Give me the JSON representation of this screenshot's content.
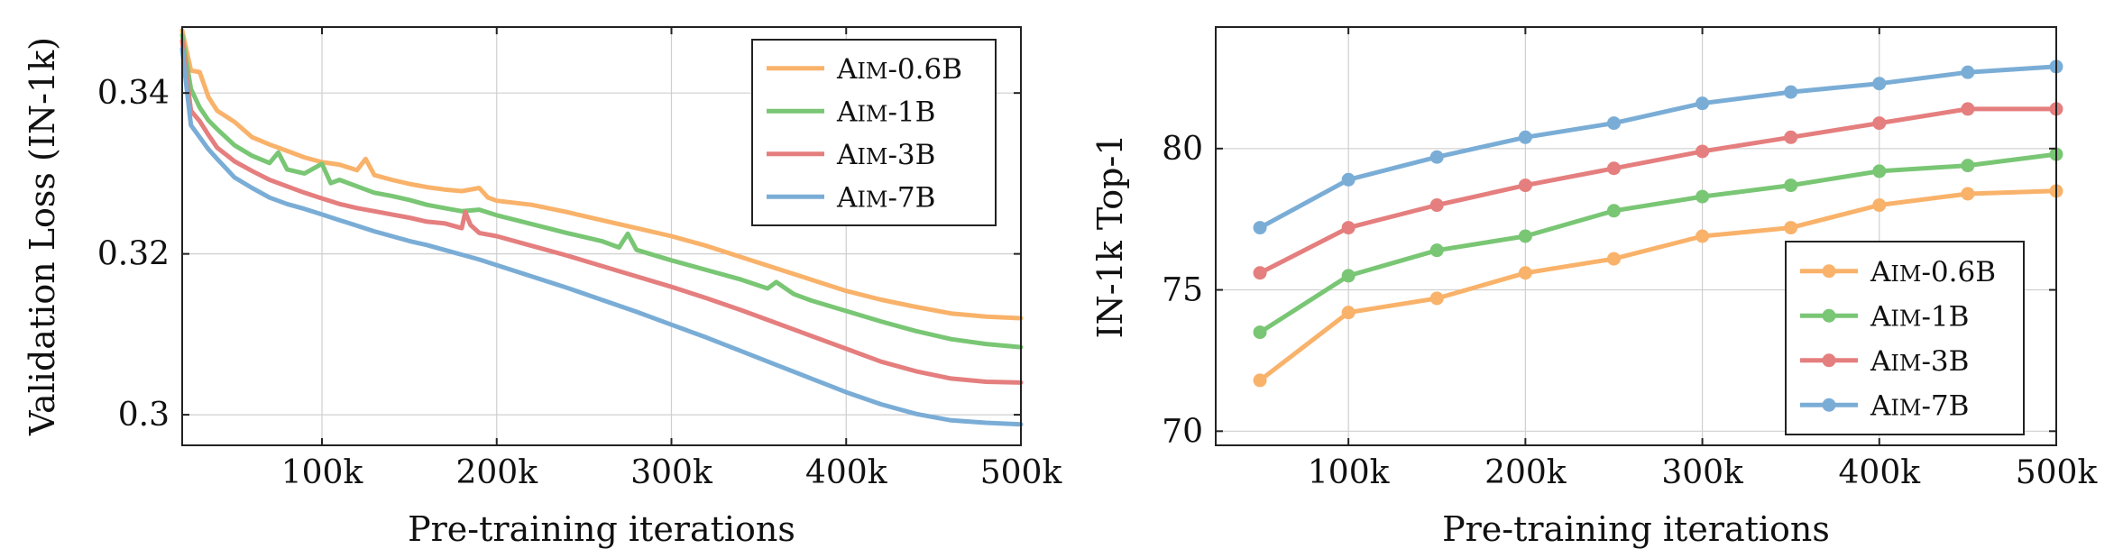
{
  "colors": {
    "Aim-0.6B": "#f9b26a",
    "Aim-1B": "#79c674",
    "Aim-3B": "#e57e7e",
    "Aim-7B": "#7aadd6"
  },
  "chart_data": [
    {
      "type": "line",
      "xlabel": "Pre-training iterations",
      "ylabel": "Validation Loss (IN-1k)",
      "xlim": [
        20000,
        500000
      ],
      "ylim": [
        0.2962,
        0.3482
      ],
      "xticks": [
        100000,
        200000,
        300000,
        400000,
        500000
      ],
      "xtick_labels": [
        "100k",
        "200k",
        "300k",
        "400k",
        "500k"
      ],
      "yticks": [
        0.3,
        0.32,
        0.34
      ],
      "ytick_labels": [
        "0.3",
        "0.32",
        "0.34"
      ],
      "legend_position": "top-right",
      "series": [
        {
          "name": "Aim-0.6B",
          "x": [
            20000,
            25000,
            30000,
            35000,
            40000,
            50000,
            60000,
            70000,
            80000,
            90000,
            100000,
            110000,
            120000,
            125000,
            130000,
            140000,
            150000,
            160000,
            170000,
            180000,
            190000,
            195000,
            200000,
            220000,
            240000,
            260000,
            280000,
            300000,
            320000,
            340000,
            360000,
            380000,
            400000,
            420000,
            440000,
            460000,
            480000,
            500000
          ],
          "y": [
            0.3478,
            0.3428,
            0.3426,
            0.3395,
            0.3378,
            0.3364,
            0.3345,
            0.3336,
            0.3328,
            0.332,
            0.3314,
            0.3311,
            0.3304,
            0.3318,
            0.3298,
            0.3292,
            0.3287,
            0.3283,
            0.328,
            0.3278,
            0.3282,
            0.327,
            0.3266,
            0.3261,
            0.3252,
            0.3242,
            0.3232,
            0.3222,
            0.321,
            0.3196,
            0.3182,
            0.3168,
            0.3154,
            0.3143,
            0.3134,
            0.3126,
            0.3122,
            0.312
          ]
        },
        {
          "name": "Aim-1B",
          "x": [
            20000,
            25000,
            30000,
            35000,
            40000,
            50000,
            60000,
            70000,
            75000,
            80000,
            90000,
            100000,
            105000,
            110000,
            120000,
            130000,
            140000,
            150000,
            160000,
            170000,
            180000,
            190000,
            200000,
            220000,
            240000,
            260000,
            270000,
            275000,
            280000,
            300000,
            320000,
            340000,
            355000,
            360000,
            370000,
            380000,
            400000,
            420000,
            440000,
            460000,
            480000,
            500000
          ],
          "y": [
            0.3472,
            0.3405,
            0.3382,
            0.3366,
            0.3355,
            0.3335,
            0.3322,
            0.3313,
            0.3326,
            0.3305,
            0.33,
            0.3312,
            0.3288,
            0.3292,
            0.3284,
            0.3276,
            0.3272,
            0.3267,
            0.3261,
            0.3257,
            0.3253,
            0.3255,
            0.3248,
            0.3237,
            0.3226,
            0.3216,
            0.3208,
            0.3225,
            0.3205,
            0.3192,
            0.318,
            0.3168,
            0.3157,
            0.3165,
            0.315,
            0.3142,
            0.3129,
            0.3116,
            0.3104,
            0.3094,
            0.3088,
            0.3084
          ]
        },
        {
          "name": "Aim-3B",
          "x": [
            20000,
            25000,
            30000,
            35000,
            40000,
            50000,
            60000,
            70000,
            80000,
            90000,
            100000,
            110000,
            120000,
            130000,
            140000,
            150000,
            160000,
            170000,
            180000,
            182000,
            185000,
            190000,
            200000,
            220000,
            240000,
            260000,
            280000,
            300000,
            320000,
            340000,
            360000,
            380000,
            400000,
            420000,
            440000,
            460000,
            480000,
            500000
          ],
          "y": [
            0.3465,
            0.3378,
            0.3365,
            0.3348,
            0.3332,
            0.3315,
            0.3303,
            0.3292,
            0.3284,
            0.3276,
            0.3269,
            0.3262,
            0.3257,
            0.3253,
            0.3249,
            0.3245,
            0.324,
            0.3238,
            0.3232,
            0.3252,
            0.3236,
            0.3226,
            0.3222,
            0.321,
            0.3198,
            0.3185,
            0.3172,
            0.3159,
            0.3145,
            0.313,
            0.3114,
            0.3098,
            0.3082,
            0.3066,
            0.3054,
            0.3045,
            0.3041,
            0.304
          ]
        },
        {
          "name": "Aim-7B",
          "x": [
            20000,
            25000,
            30000,
            35000,
            40000,
            50000,
            60000,
            70000,
            80000,
            90000,
            100000,
            110000,
            120000,
            130000,
            140000,
            150000,
            160000,
            170000,
            180000,
            190000,
            200000,
            220000,
            240000,
            260000,
            280000,
            300000,
            320000,
            340000,
            360000,
            380000,
            400000,
            420000,
            440000,
            460000,
            480000,
            500000
          ],
          "y": [
            0.3455,
            0.336,
            0.3345,
            0.333,
            0.3318,
            0.3295,
            0.3282,
            0.327,
            0.3262,
            0.3256,
            0.3249,
            0.3242,
            0.3235,
            0.3228,
            0.3222,
            0.3216,
            0.3211,
            0.3205,
            0.3199,
            0.3193,
            0.3186,
            0.3172,
            0.3158,
            0.3143,
            0.3128,
            0.3112,
            0.3096,
            0.3079,
            0.3062,
            0.3045,
            0.3028,
            0.3013,
            0.3001,
            0.2993,
            0.299,
            0.2988
          ]
        }
      ]
    },
    {
      "type": "line",
      "xlabel": "Pre-training iterations",
      "ylabel": "IN-1k Top-1",
      "xlim": [
        25000,
        500000
      ],
      "ylim": [
        69.5,
        84.3
      ],
      "xticks": [
        100000,
        200000,
        300000,
        400000,
        500000
      ],
      "xtick_labels": [
        "100k",
        "200k",
        "300k",
        "400k",
        "500k"
      ],
      "yticks": [
        70,
        75,
        80
      ],
      "ytick_labels": [
        "70",
        "75",
        "80"
      ],
      "legend_position": "bottom-right",
      "markers": true,
      "series": [
        {
          "name": "Aim-0.6B",
          "x": [
            50000,
            100000,
            150000,
            200000,
            250000,
            300000,
            350000,
            400000,
            450000,
            500000
          ],
          "y": [
            71.8,
            74.2,
            74.7,
            75.6,
            76.1,
            76.9,
            77.2,
            78.0,
            78.4,
            78.5
          ]
        },
        {
          "name": "Aim-1B",
          "x": [
            50000,
            100000,
            150000,
            200000,
            250000,
            300000,
            350000,
            400000,
            450000,
            500000
          ],
          "y": [
            73.5,
            75.5,
            76.4,
            76.9,
            77.8,
            78.3,
            78.7,
            79.2,
            79.4,
            79.8
          ]
        },
        {
          "name": "Aim-3B",
          "x": [
            50000,
            100000,
            150000,
            200000,
            250000,
            300000,
            350000,
            400000,
            450000,
            500000
          ],
          "y": [
            75.6,
            77.2,
            78.0,
            78.7,
            79.3,
            79.9,
            80.4,
            80.9,
            81.4,
            81.4
          ]
        },
        {
          "name": "Aim-7B",
          "x": [
            50000,
            100000,
            150000,
            200000,
            250000,
            300000,
            350000,
            400000,
            450000,
            500000
          ],
          "y": [
            77.2,
            78.9,
            79.7,
            80.4,
            80.9,
            81.6,
            82.0,
            82.3,
            82.7,
            82.9
          ]
        }
      ]
    }
  ],
  "legend": {
    "entries": [
      {
        "prefix": "A",
        "smallcaps": "IM",
        "suffix": "-0.6B"
      },
      {
        "prefix": "A",
        "smallcaps": "IM",
        "suffix": "-1B"
      },
      {
        "prefix": "A",
        "smallcaps": "IM",
        "suffix": "-3B"
      },
      {
        "prefix": "A",
        "smallcaps": "IM",
        "suffix": "-7B"
      }
    ]
  }
}
